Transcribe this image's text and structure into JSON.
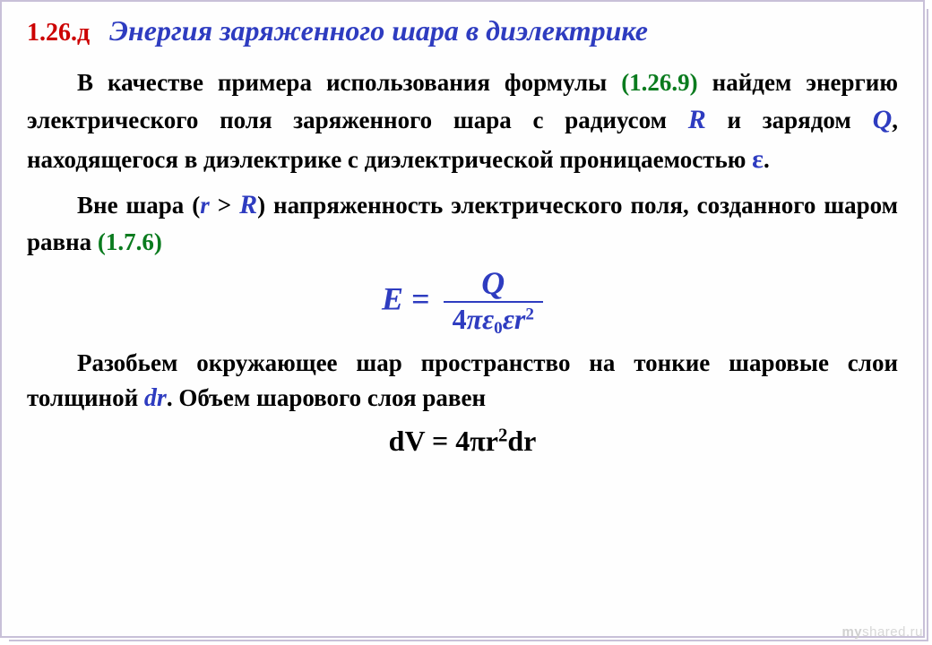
{
  "header": {
    "section_num": "1.26.д",
    "title": "Энергия заряженного шара в диэлектрике"
  },
  "paragraphs": {
    "p1a": "В качестве примера использования формулы ",
    "p1_ref": "(1.26.9)",
    "p1b": " найдем энергию электрического поля заряженного шара с радиусом ",
    "p1_R": "R",
    "p1c": " и зарядом ",
    "p1_Q": "Q",
    "p1d": ", находящегося в диэлектрике с диэлектрической проницаемостью   ",
    "p1_eps": "ε",
    "p1e": ".",
    "p2a": "Вне шара (",
    "p2_r": "r",
    "p2b": " > ",
    "p2_R": "R",
    "p2c": ") напряженность электрического поля, созданного шаром равна  ",
    "p2_ref": "(1.7.6)",
    "p3a": "Разобьем окружающее шар пространство на тонкие шаровые слои толщиной ",
    "p3_dr": "dr",
    "p3b": ".  Объем шарового слоя равен"
  },
  "formula": {
    "lhs": "E",
    "eq": " = ",
    "numerator": "Q",
    "den_prefix": "4",
    "den_pi": "π",
    "den_eps0": "ε",
    "den_sub0": "0",
    "den_eps": "ε",
    "den_r": "r",
    "den_sup": "2"
  },
  "dv": {
    "text_a": "dV = 4",
    "pi": "π",
    "text_b": "r",
    "sup": "2",
    "text_c": "dr"
  },
  "watermark": {
    "my": "my",
    "rest": "shared.ru"
  },
  "colors": {
    "section_num": "#cc0000",
    "title_and_vars": "#2e3cc0",
    "ref_green": "#0a7b1e",
    "body_text": "#000000",
    "border": "#c8c0d8",
    "background": "#fefefe",
    "watermark": "#d7d7d7"
  },
  "typography": {
    "body_fontsize": 27,
    "title_fontsize": 32,
    "section_fontsize": 28,
    "formula_fontsize": 36,
    "font_family": "Times New Roman"
  }
}
